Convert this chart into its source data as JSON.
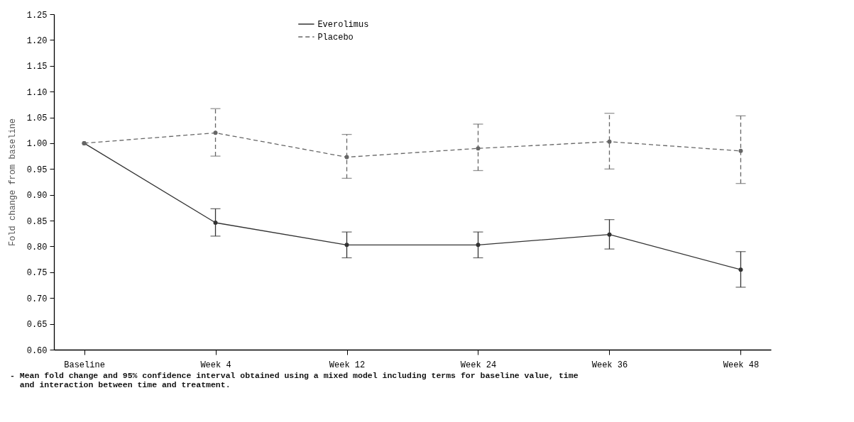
{
  "chart_data": {
    "type": "line",
    "ylabel": "Fold change from baseline",
    "categories": [
      "Baseline",
      "Week 4",
      "Week 12",
      "Week 24",
      "Week 36",
      "Week 48"
    ],
    "series": [
      {
        "name": "Everolimus",
        "color": "#333333",
        "line_style": "solid",
        "values": [
          1.0,
          0.846,
          0.803,
          0.803,
          0.823,
          0.755
        ],
        "errors": [
          null,
          [
            0.82,
            0.873
          ],
          [
            0.778,
            0.828
          ],
          [
            0.778,
            0.828
          ],
          [
            0.795,
            0.852
          ],
          [
            0.721,
            0.79
          ]
        ]
      },
      {
        "name": "Placebo",
        "color": "#666666",
        "line_style": "dashed",
        "values": [
          1.0,
          1.02,
          0.973,
          0.99,
          1.003,
          0.985
        ],
        "errors": [
          null,
          [
            0.975,
            1.067
          ],
          [
            0.932,
            1.017
          ],
          [
            0.947,
            1.037
          ],
          [
            0.95,
            1.058
          ],
          [
            0.922,
            1.053
          ]
        ]
      }
    ],
    "ylim": [
      0.6,
      1.25
    ],
    "yticks": [
      {
        "value": 0.6,
        "label": "0.60"
      },
      {
        "value": 0.65,
        "label": "0.65"
      },
      {
        "value": 0.7,
        "label": "0.70"
      },
      {
        "value": 0.75,
        "label": "0.75"
      },
      {
        "value": 0.8,
        "label": "0.80"
      },
      {
        "value": 0.85,
        "label": "0.85"
      },
      {
        "value": 0.9,
        "label": "0.90"
      },
      {
        "value": 0.95,
        "label": "0.95"
      },
      {
        "value": 1.0,
        "label": "1.00"
      },
      {
        "value": 1.05,
        "label": "1.05"
      },
      {
        "value": 1.1,
        "label": "1.10"
      },
      {
        "value": 1.15,
        "label": "1.15"
      },
      {
        "value": 1.2,
        "label": "1.20"
      },
      {
        "value": 1.25,
        "label": "1.25"
      }
    ],
    "marker": "circle",
    "grid": false,
    "legend": "top",
    "annotations": [
      "- Mean fold change and 95% confidence interval obtained using a mixed model including terms for baseline value, time\n  and interaction between time and treatment."
    ]
  }
}
